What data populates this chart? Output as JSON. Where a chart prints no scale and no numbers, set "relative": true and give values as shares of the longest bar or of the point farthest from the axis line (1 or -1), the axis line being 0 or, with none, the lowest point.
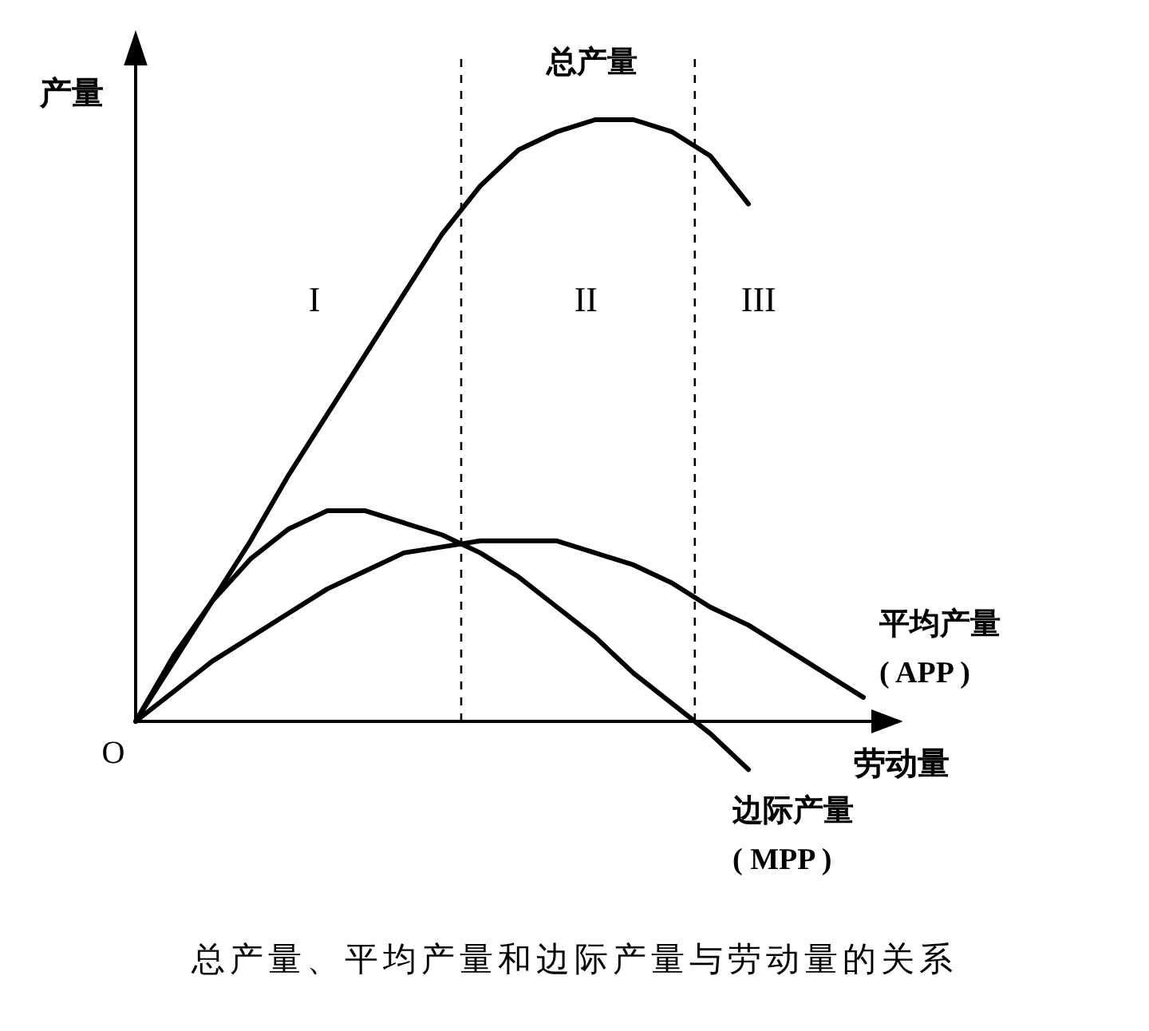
{
  "chart_data": {
    "type": "line",
    "relative": true,
    "title": "总产量、平均产量和边际产量与劳动量的关系",
    "xlabel": "劳动量",
    "ylabel": "产量",
    "categories": [
      null,
      null,
      null,
      null,
      null,
      null,
      null,
      null,
      null,
      null,
      null,
      null,
      null,
      null,
      null,
      null,
      null,
      null,
      null,
      null
    ],
    "series": [
      {
        "name": "总产量",
        "color": "#000000",
        "values": [
          0,
          0.1,
          0.2,
          0.3,
          0.41,
          0.51,
          0.61,
          0.71,
          0.81,
          0.89,
          0.95,
          0.98,
          1.0,
          1.0,
          0.98,
          0.94,
          0.86,
          null,
          null,
          null
        ]
      },
      {
        "name": "平均产量\n( APP )",
        "color": "#000000",
        "values": [
          0,
          0.05,
          0.1,
          0.14,
          0.18,
          0.22,
          0.25,
          0.28,
          0.29,
          0.3,
          0.3,
          0.3,
          0.28,
          0.26,
          0.23,
          0.19,
          0.16,
          0.12,
          0.08,
          0.04
        ]
      },
      {
        "name": "边际产量\n( MPP )",
        "color": "#000000",
        "values": [
          0,
          0.11,
          0.2,
          0.27,
          0.32,
          0.35,
          0.35,
          0.33,
          0.31,
          0.28,
          0.24,
          0.19,
          0.14,
          0.08,
          0.03,
          -0.02,
          -0.08,
          null,
          null,
          null
        ]
      }
    ],
    "annotations": [
      "O",
      "I",
      "II",
      "III"
    ]
  }
}
